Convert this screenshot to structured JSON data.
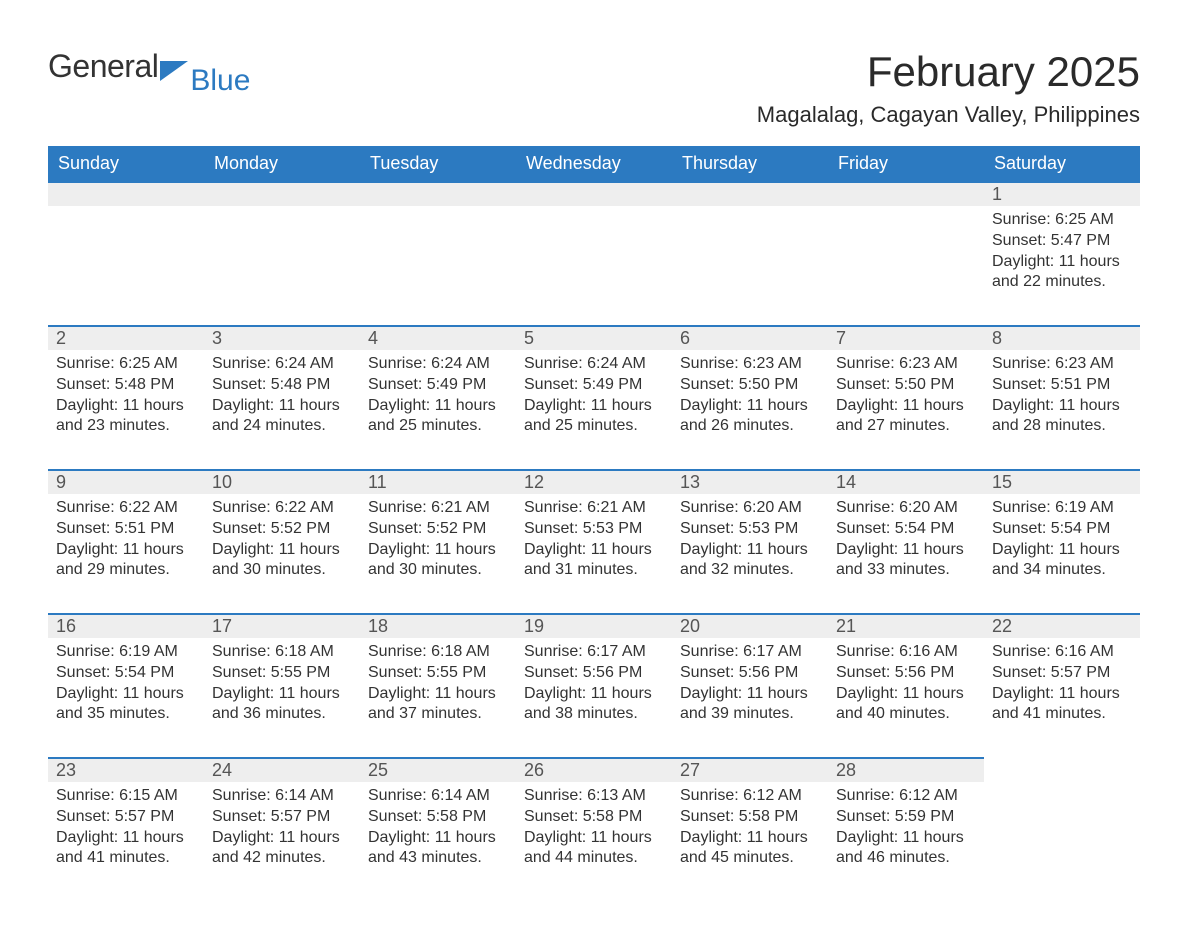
{
  "brand": {
    "word1": "General",
    "word2": "Blue"
  },
  "colors": {
    "accent": "#2c7ac1",
    "headerBg": "#2c7ac1",
    "headerText": "#ffffff",
    "dayBarBg": "#eeeeee",
    "dayBarBorder": "#2c7ac1",
    "bodyText": "#333333",
    "pageBg": "#ffffff"
  },
  "typography": {
    "title_fontsize_pt": 32,
    "subtitle_fontsize_pt": 17,
    "header_fontsize_pt": 14,
    "body_fontsize_pt": 12,
    "font_family": "Segoe UI / Arial"
  },
  "title": "February 2025",
  "subtitle": "Magalalag, Cagayan Valley, Philippines",
  "weekday_headers": [
    "Sunday",
    "Monday",
    "Tuesday",
    "Wednesday",
    "Thursday",
    "Friday",
    "Saturday"
  ],
  "calendar": {
    "type": "table",
    "columns": 7,
    "first_weekday_index": 6,
    "days": [
      {
        "n": 1,
        "sunrise": "6:25 AM",
        "sunset": "5:47 PM",
        "daylight": "11 hours and 22 minutes."
      },
      {
        "n": 2,
        "sunrise": "6:25 AM",
        "sunset": "5:48 PM",
        "daylight": "11 hours and 23 minutes."
      },
      {
        "n": 3,
        "sunrise": "6:24 AM",
        "sunset": "5:48 PM",
        "daylight": "11 hours and 24 minutes."
      },
      {
        "n": 4,
        "sunrise": "6:24 AM",
        "sunset": "5:49 PM",
        "daylight": "11 hours and 25 minutes."
      },
      {
        "n": 5,
        "sunrise": "6:24 AM",
        "sunset": "5:49 PM",
        "daylight": "11 hours and 25 minutes."
      },
      {
        "n": 6,
        "sunrise": "6:23 AM",
        "sunset": "5:50 PM",
        "daylight": "11 hours and 26 minutes."
      },
      {
        "n": 7,
        "sunrise": "6:23 AM",
        "sunset": "5:50 PM",
        "daylight": "11 hours and 27 minutes."
      },
      {
        "n": 8,
        "sunrise": "6:23 AM",
        "sunset": "5:51 PM",
        "daylight": "11 hours and 28 minutes."
      },
      {
        "n": 9,
        "sunrise": "6:22 AM",
        "sunset": "5:51 PM",
        "daylight": "11 hours and 29 minutes."
      },
      {
        "n": 10,
        "sunrise": "6:22 AM",
        "sunset": "5:52 PM",
        "daylight": "11 hours and 30 minutes."
      },
      {
        "n": 11,
        "sunrise": "6:21 AM",
        "sunset": "5:52 PM",
        "daylight": "11 hours and 30 minutes."
      },
      {
        "n": 12,
        "sunrise": "6:21 AM",
        "sunset": "5:53 PM",
        "daylight": "11 hours and 31 minutes."
      },
      {
        "n": 13,
        "sunrise": "6:20 AM",
        "sunset": "5:53 PM",
        "daylight": "11 hours and 32 minutes."
      },
      {
        "n": 14,
        "sunrise": "6:20 AM",
        "sunset": "5:54 PM",
        "daylight": "11 hours and 33 minutes."
      },
      {
        "n": 15,
        "sunrise": "6:19 AM",
        "sunset": "5:54 PM",
        "daylight": "11 hours and 34 minutes."
      },
      {
        "n": 16,
        "sunrise": "6:19 AM",
        "sunset": "5:54 PM",
        "daylight": "11 hours and 35 minutes."
      },
      {
        "n": 17,
        "sunrise": "6:18 AM",
        "sunset": "5:55 PM",
        "daylight": "11 hours and 36 minutes."
      },
      {
        "n": 18,
        "sunrise": "6:18 AM",
        "sunset": "5:55 PM",
        "daylight": "11 hours and 37 minutes."
      },
      {
        "n": 19,
        "sunrise": "6:17 AM",
        "sunset": "5:56 PM",
        "daylight": "11 hours and 38 minutes."
      },
      {
        "n": 20,
        "sunrise": "6:17 AM",
        "sunset": "5:56 PM",
        "daylight": "11 hours and 39 minutes."
      },
      {
        "n": 21,
        "sunrise": "6:16 AM",
        "sunset": "5:56 PM",
        "daylight": "11 hours and 40 minutes."
      },
      {
        "n": 22,
        "sunrise": "6:16 AM",
        "sunset": "5:57 PM",
        "daylight": "11 hours and 41 minutes."
      },
      {
        "n": 23,
        "sunrise": "6:15 AM",
        "sunset": "5:57 PM",
        "daylight": "11 hours and 41 minutes."
      },
      {
        "n": 24,
        "sunrise": "6:14 AM",
        "sunset": "5:57 PM",
        "daylight": "11 hours and 42 minutes."
      },
      {
        "n": 25,
        "sunrise": "6:14 AM",
        "sunset": "5:58 PM",
        "daylight": "11 hours and 43 minutes."
      },
      {
        "n": 26,
        "sunrise": "6:13 AM",
        "sunset": "5:58 PM",
        "daylight": "11 hours and 44 minutes."
      },
      {
        "n": 27,
        "sunrise": "6:12 AM",
        "sunset": "5:58 PM",
        "daylight": "11 hours and 45 minutes."
      },
      {
        "n": 28,
        "sunrise": "6:12 AM",
        "sunset": "5:59 PM",
        "daylight": "11 hours and 46 minutes."
      }
    ],
    "labels": {
      "sunrise": "Sunrise:",
      "sunset": "Sunset:",
      "daylight": "Daylight:"
    }
  }
}
